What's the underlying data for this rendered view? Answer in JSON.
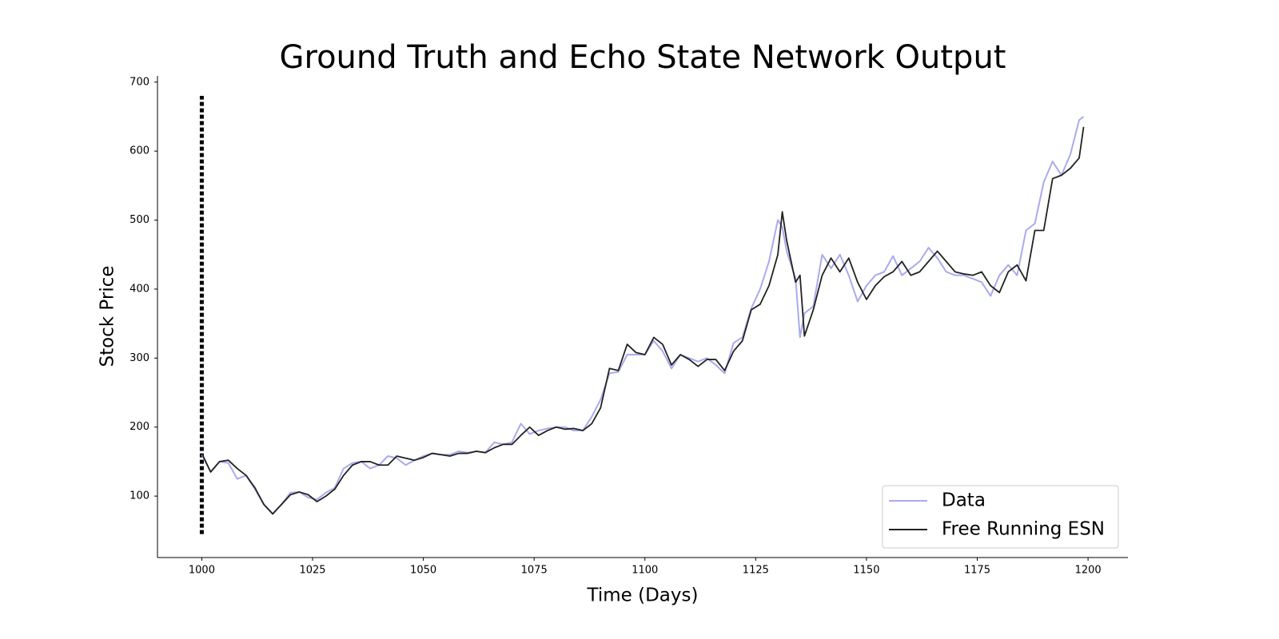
{
  "chart_data": {
    "type": "line",
    "title": "Ground Truth and Echo State Network Output",
    "x_label": "Time (Days)",
    "y_label": "Stock Price",
    "x": [
      1000,
      1002,
      1004,
      1006,
      1008,
      1010,
      1012,
      1014,
      1016,
      1018,
      1020,
      1022,
      1024,
      1026,
      1028,
      1030,
      1032,
      1034,
      1036,
      1038,
      1040,
      1042,
      1044,
      1046,
      1048,
      1050,
      1052,
      1054,
      1056,
      1058,
      1060,
      1062,
      1064,
      1066,
      1068,
      1070,
      1072,
      1074,
      1076,
      1078,
      1080,
      1082,
      1084,
      1086,
      1088,
      1090,
      1092,
      1094,
      1096,
      1098,
      1100,
      1102,
      1104,
      1106,
      1108,
      1110,
      1112,
      1114,
      1116,
      1118,
      1120,
      1122,
      1124,
      1126,
      1128,
      1130,
      1131,
      1132,
      1134,
      1135,
      1136,
      1138,
      1140,
      1142,
      1144,
      1146,
      1148,
      1150,
      1152,
      1154,
      1156,
      1158,
      1160,
      1162,
      1164,
      1166,
      1168,
      1170,
      1172,
      1174,
      1176,
      1178,
      1180,
      1182,
      1184,
      1186,
      1188,
      1190,
      1192,
      1194,
      1196,
      1198,
      1199
    ],
    "series": [
      {
        "name": "Data",
        "color": "#aaaaee",
        "values": [
          160,
          135,
          150,
          148,
          125,
          130,
          110,
          88,
          75,
          88,
          105,
          106,
          98,
          95,
          105,
          112,
          140,
          148,
          150,
          140,
          145,
          158,
          155,
          145,
          152,
          158,
          162,
          160,
          160,
          165,
          163,
          165,
          163,
          178,
          175,
          178,
          205,
          190,
          195,
          198,
          200,
          200,
          195,
          195,
          215,
          240,
          278,
          280,
          305,
          305,
          305,
          325,
          310,
          285,
          305,
          300,
          295,
          300,
          290,
          278,
          322,
          330,
          372,
          400,
          440,
          500,
          490,
          455,
          415,
          330,
          365,
          375,
          450,
          430,
          450,
          420,
          382,
          405,
          420,
          425,
          448,
          420,
          430,
          440,
          460,
          445,
          425,
          420,
          420,
          415,
          410,
          390,
          420,
          435,
          420,
          485,
          495,
          555,
          585,
          565,
          595,
          645,
          650
        ]
      },
      {
        "name": "Free Running ESN",
        "color": "#222222",
        "values": [
          162,
          135,
          150,
          152,
          140,
          130,
          112,
          88,
          74,
          88,
          102,
          106,
          102,
          92,
          100,
          110,
          130,
          145,
          150,
          150,
          145,
          145,
          158,
          155,
          152,
          156,
          162,
          160,
          158,
          162,
          162,
          165,
          163,
          170,
          175,
          175,
          188,
          200,
          188,
          195,
          200,
          197,
          198,
          195,
          205,
          228,
          285,
          282,
          320,
          308,
          305,
          330,
          320,
          290,
          305,
          298,
          288,
          298,
          298,
          282,
          310,
          325,
          370,
          378,
          405,
          450,
          512,
          470,
          410,
          420,
          332,
          370,
          420,
          445,
          425,
          445,
          410,
          385,
          405,
          418,
          425,
          440,
          420,
          425,
          440,
          455,
          440,
          425,
          422,
          420,
          425,
          405,
          395,
          425,
          435,
          412,
          485,
          485,
          560,
          565,
          575,
          590,
          635
        ]
      }
    ],
    "marker_line": {
      "x": 1000,
      "ymin": 45,
      "ymax": 680
    },
    "xlim": [
      990,
      1209
    ],
    "ylim": [
      11,
      709
    ],
    "xticks": [
      1000,
      1025,
      1050,
      1075,
      1100,
      1125,
      1150,
      1175,
      1200
    ],
    "yticks": [
      100,
      200,
      300,
      400,
      500,
      600,
      700
    ],
    "legend": "lower right",
    "grid": false
  }
}
